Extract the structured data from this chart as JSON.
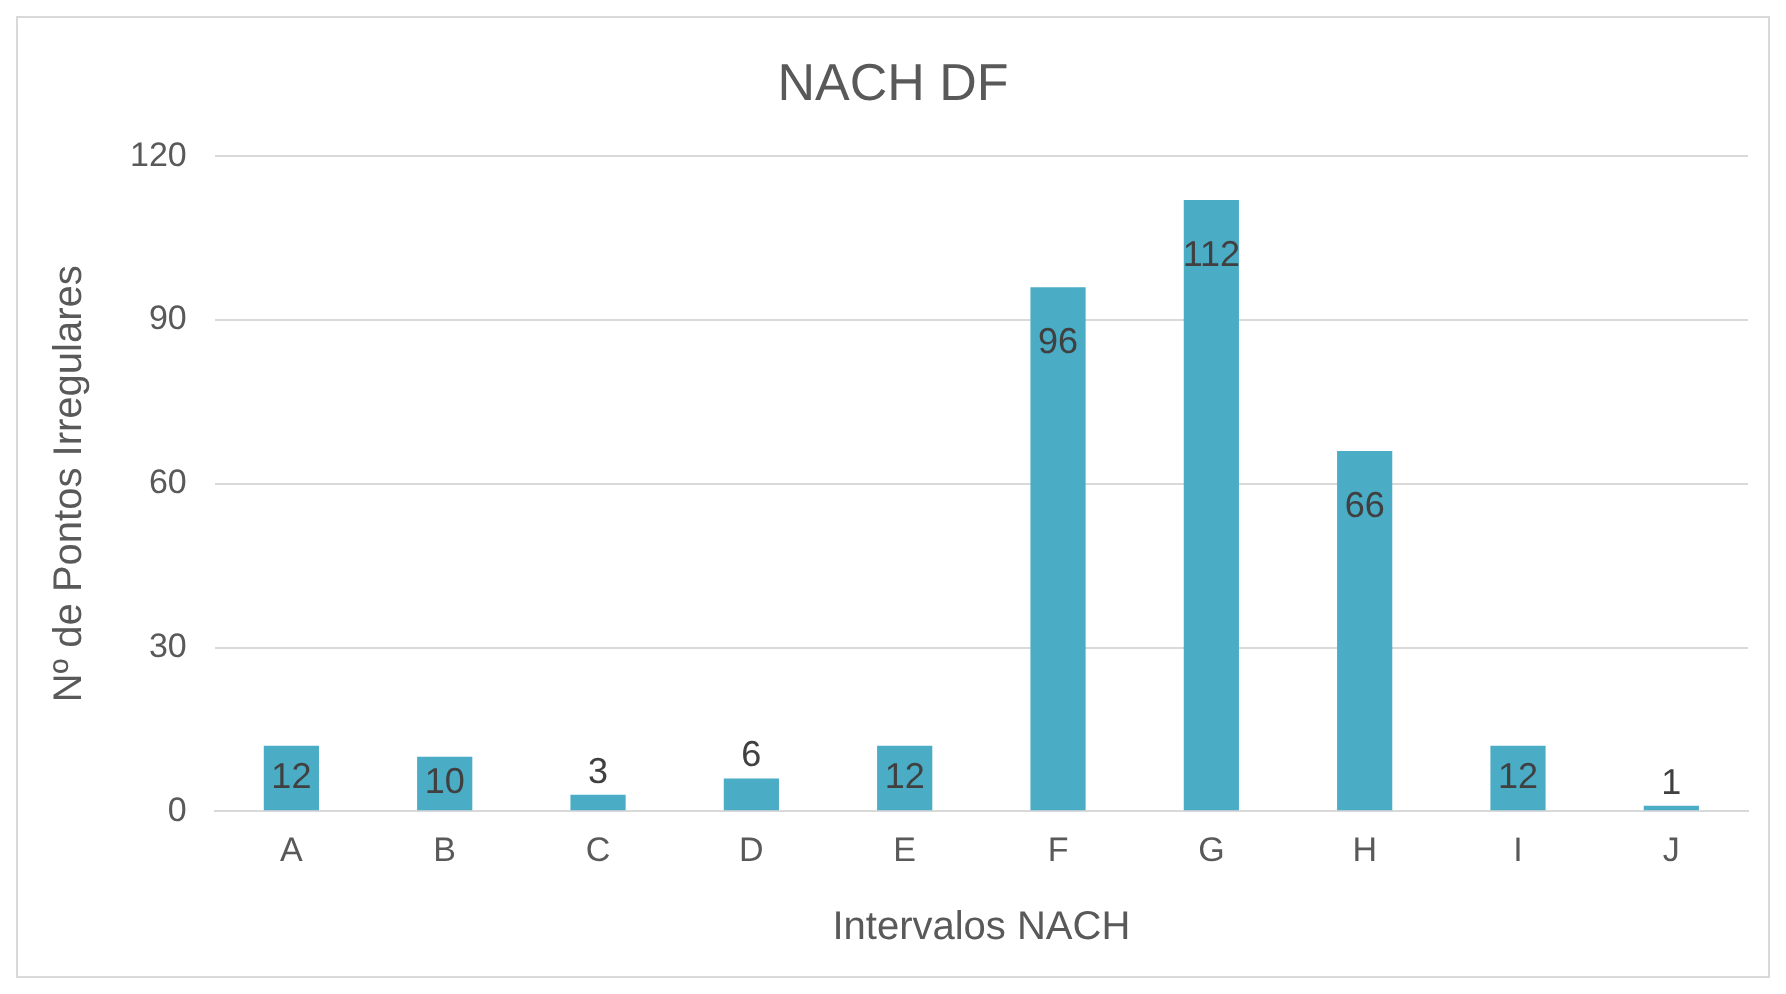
{
  "chart_data": {
    "type": "bar",
    "title": "NACH DF",
    "xlabel": "Intervalos NACH",
    "ylabel": "Nº de Pontos Irregulares",
    "categories": [
      "A",
      "B",
      "C",
      "D",
      "E",
      "F",
      "G",
      "H",
      "I",
      "J"
    ],
    "series": [
      {
        "color": "#4bacc6",
        "values": [
          12,
          10,
          3,
          6,
          12,
          96,
          112,
          66,
          12,
          1
        ]
      }
    ],
    "ylim": [
      0,
      120
    ],
    "yticks": [
      0,
      30,
      60,
      90,
      120
    ],
    "grid": "y",
    "legend": false,
    "data_labels": true
  }
}
